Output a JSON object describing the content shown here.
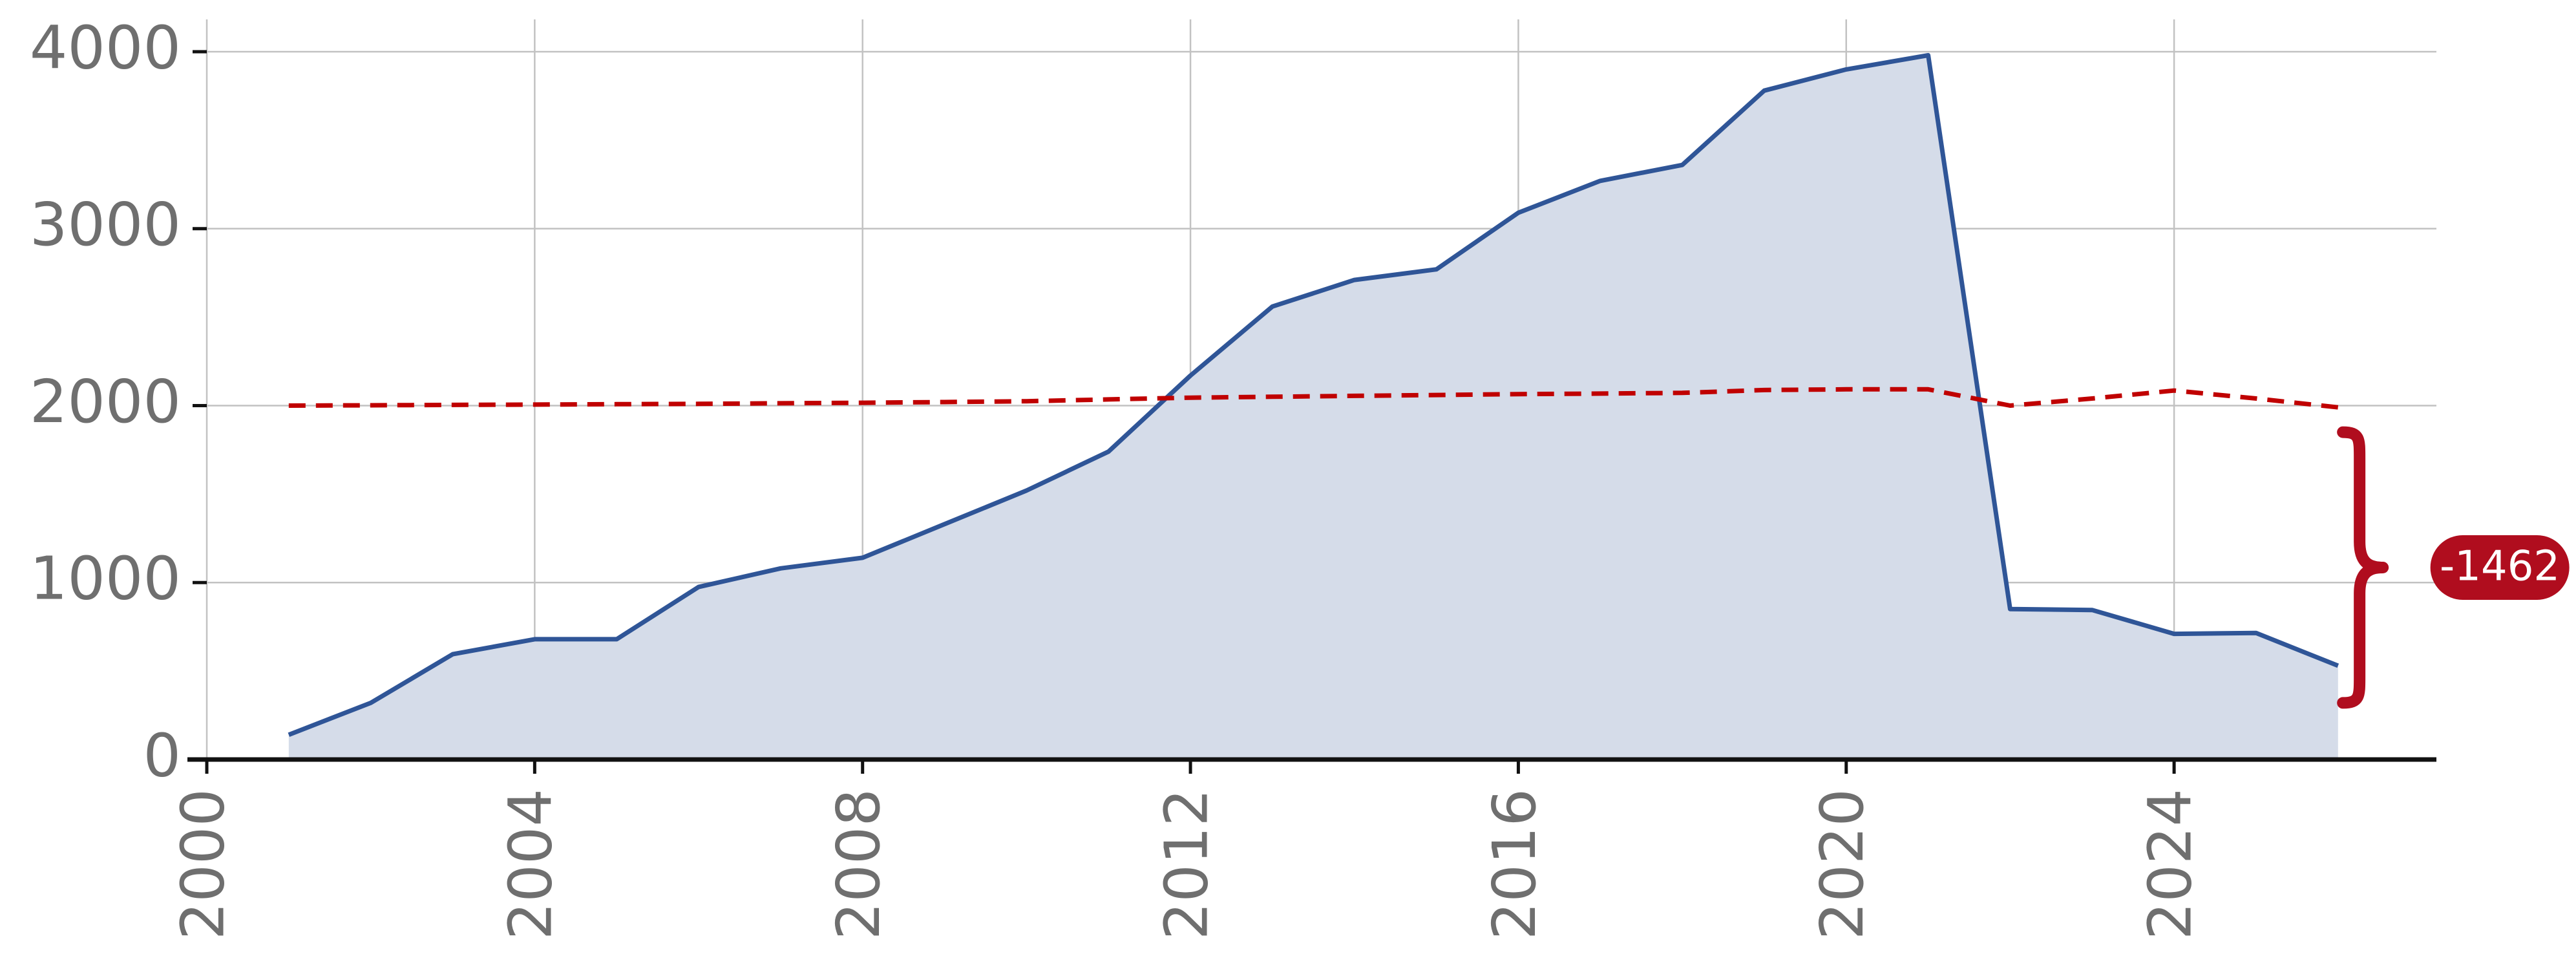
{
  "chart_data": {
    "type": "area",
    "x_label": "",
    "y_label": "",
    "title": "",
    "xlim": [
      2000,
      2027.2
    ],
    "ylim": [
      0,
      4000
    ],
    "grid": true,
    "x_ticks": [
      "2000",
      "2004",
      "2008",
      "2012",
      "2016",
      "2020",
      "2024"
    ],
    "y_ticks": [
      "0",
      "1000",
      "2000",
      "3000",
      "4000"
    ],
    "series": [
      {
        "style": "filled-line",
        "color": "#2f5597",
        "fill": "#d5dce9",
        "x": [
          2001,
          2002,
          2003,
          2004,
          2005,
          2006,
          2007,
          2008,
          2009,
          2010,
          2011,
          2012,
          2013,
          2014,
          2015,
          2016,
          2017,
          2018,
          2019,
          2020,
          2021,
          2022,
          2023,
          2024,
          2025,
          2026
        ],
        "y": [
          140,
          320,
          595,
          680,
          680,
          975,
          1080,
          1140,
          1330,
          1520,
          1740,
          2170,
          2560,
          2710,
          2770,
          3090,
          3270,
          3360,
          3780,
          3900,
          3980,
          850,
          845,
          710,
          715,
          530
        ]
      },
      {
        "style": "dashed-line",
        "color": "#c00000",
        "x": [
          2001,
          2002,
          2003,
          2004,
          2005,
          2006,
          2007,
          2008,
          2009,
          2010,
          2011,
          2012,
          2013,
          2014,
          2015,
          2016,
          2017,
          2018,
          2019,
          2020,
          2021,
          2022,
          2023,
          2024,
          2025,
          2026
        ],
        "y": [
          2000,
          2002,
          2004,
          2006,
          2008,
          2010,
          2013,
          2016,
          2020,
          2025,
          2035,
          2045,
          2050,
          2055,
          2060,
          2065,
          2068,
          2072,
          2088,
          2092,
          2092,
          2000,
          2040,
          2085,
          2040,
          1990
        ]
      }
    ],
    "annotation": {
      "label": "-1462",
      "x": 2026.2,
      "y_from": 1850,
      "y_to": 320,
      "color": "#b00d1e"
    }
  }
}
